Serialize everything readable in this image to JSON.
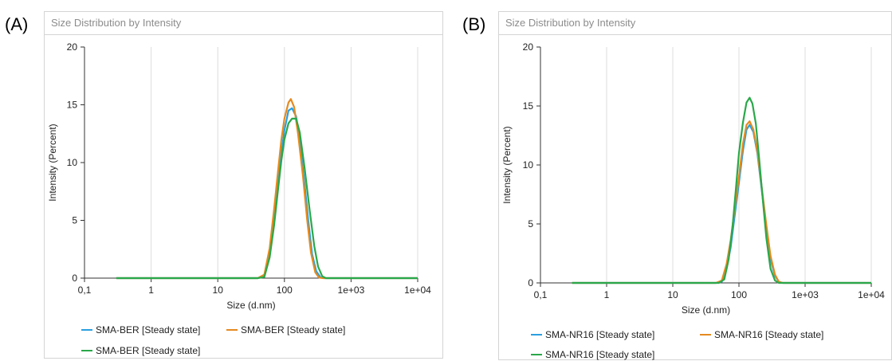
{
  "panels": [
    {
      "letter": "(A)",
      "title": "Size Distribution by Intensity"
    },
    {
      "letter": "(B)",
      "title": "Size Distribution by Intensity"
    }
  ],
  "chart_data": [
    {
      "type": "line",
      "title": "Size Distribution by Intensity",
      "xlabel": "Size (d.nm)",
      "ylabel": "Intensity (Percent)",
      "xscale": "log",
      "xlim": [
        0.1,
        10000
      ],
      "ylim": [
        0,
        20
      ],
      "xticks": [
        0.1,
        1,
        10,
        100,
        1000,
        10000
      ],
      "xtick_labels": [
        "0,1",
        "1",
        "10",
        "100",
        "1e+03",
        "1e+04"
      ],
      "yticks": [
        0,
        5,
        10,
        15,
        20
      ],
      "ytick_labels": [
        "0",
        "5",
        "10",
        "15",
        "20"
      ],
      "grid": true,
      "legend_position": "bottom",
      "series": [
        {
          "name": "SMA-BER  [Steady state]",
          "color": "#2a9fe0",
          "x": [
            0.3,
            40,
            50,
            60,
            70,
            80,
            90,
            100,
            115,
            130,
            150,
            170,
            200,
            230,
            260,
            300,
            350,
            400,
            10000
          ],
          "y": [
            0,
            0,
            0.2,
            2.1,
            5.2,
            8.2,
            10.8,
            12.8,
            14.5,
            14.7,
            14.0,
            11.8,
            8.2,
            4.8,
            2.1,
            0.6,
            0.05,
            0,
            0
          ]
        },
        {
          "name": "SMA-BER  [Steady state]",
          "color": "#e58a1f",
          "x": [
            0.3,
            40,
            50,
            60,
            70,
            80,
            90,
            100,
            115,
            125,
            140,
            160,
            190,
            220,
            250,
            290,
            330,
            380,
            10000
          ],
          "y": [
            0,
            0,
            0.3,
            2.6,
            6.0,
            9.2,
            12.0,
            13.8,
            15.2,
            15.5,
            14.8,
            12.5,
            8.8,
            5.0,
            2.2,
            0.5,
            0.05,
            0,
            0
          ]
        },
        {
          "name": "SMA-BER [Steady state]",
          "color": "#2aa84a",
          "x": [
            0.3,
            40,
            50,
            60,
            70,
            80,
            90,
            100,
            115,
            130,
            150,
            170,
            200,
            240,
            280,
            320,
            370,
            420,
            10000
          ],
          "y": [
            0,
            0,
            0.1,
            1.8,
            4.6,
            7.6,
            10.2,
            12.0,
            13.4,
            13.8,
            13.8,
            12.6,
            9.6,
            5.8,
            2.8,
            1.0,
            0.15,
            0,
            0
          ]
        }
      ]
    },
    {
      "type": "line",
      "title": "Size Distribution by Intensity",
      "xlabel": "Size (d.nm)",
      "ylabel": "Intensity (Percent)",
      "xscale": "log",
      "xlim": [
        0.1,
        10000
      ],
      "ylim": [
        0,
        20
      ],
      "xticks": [
        0.1,
        1,
        10,
        100,
        1000,
        10000
      ],
      "xtick_labels": [
        "0,1",
        "1",
        "10",
        "100",
        "1e+03",
        "1e+04"
      ],
      "yticks": [
        0,
        5,
        10,
        15,
        20
      ],
      "ytick_labels": [
        "0",
        "5",
        "10",
        "15",
        "20"
      ],
      "grid": true,
      "legend_position": "bottom",
      "series": [
        {
          "name": "SMA-NR16  [Steady state]",
          "color": "#2a9fe0",
          "x": [
            0.3,
            45,
            55,
            65,
            75,
            85,
            100,
            115,
            130,
            145,
            165,
            190,
            220,
            260,
            300,
            350,
            400,
            460,
            10000
          ],
          "y": [
            0,
            0,
            0.1,
            1.2,
            3.0,
            5.4,
            8.5,
            11.2,
            13.0,
            13.4,
            12.8,
            11.0,
            8.0,
            4.6,
            2.0,
            0.6,
            0.1,
            0,
            0
          ]
        },
        {
          "name": "SMA-NR16  [Steady state]",
          "color": "#e58a1f",
          "x": [
            0.3,
            45,
            55,
            65,
            75,
            85,
            100,
            115,
            130,
            145,
            165,
            190,
            220,
            260,
            300,
            350,
            400,
            460,
            10000
          ],
          "y": [
            0,
            0,
            0.2,
            1.6,
            3.6,
            6.0,
            9.0,
            11.8,
            13.4,
            13.7,
            13.0,
            11.2,
            8.2,
            4.9,
            2.3,
            0.7,
            0.1,
            0,
            0
          ]
        },
        {
          "name": "SMA-NR16  [Steady state]",
          "color": "#2aa84a",
          "x": [
            0.3,
            50,
            60,
            70,
            80,
            90,
            100,
            115,
            130,
            145,
            160,
            180,
            200,
            230,
            260,
            300,
            350,
            400,
            10000
          ],
          "y": [
            0,
            0,
            0.3,
            2.0,
            4.8,
            8.0,
            11.0,
            13.6,
            15.3,
            15.7,
            15.2,
            13.5,
            10.8,
            7.0,
            3.8,
            1.2,
            0.2,
            0,
            0
          ]
        }
      ]
    }
  ]
}
